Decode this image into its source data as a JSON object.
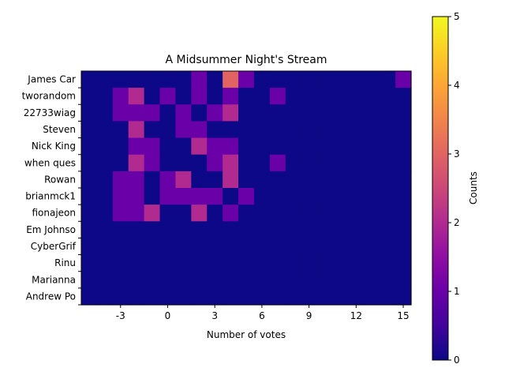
{
  "chart_data": {
    "type": "heatmap",
    "title": "A Midsummer Night's Stream",
    "xlabel": "Number of votes",
    "ylabel": "",
    "x_bin_start": -5.5,
    "x_bin_width": 1,
    "xlim": [
      -5.5,
      15.5
    ],
    "x_ticks": [
      -3,
      0,
      3,
      6,
      9,
      12,
      15
    ],
    "y_labels": [
      "James Car",
      "tworandom",
      "22733wiag",
      "Steven",
      "Nick King",
      "when ques",
      "Rowan",
      "brianmck1",
      "fionajeon",
      "Em Johnso",
      "CyberGrif",
      "Rinu",
      "Marianna ",
      "Andrew Po"
    ],
    "counts": [
      [
        0,
        0,
        0,
        0,
        0,
        0,
        0,
        1,
        0,
        3,
        1,
        0,
        0,
        0,
        0,
        0,
        0,
        0,
        0,
        0,
        1
      ],
      [
        0,
        0,
        1,
        2,
        0,
        1,
        0,
        1,
        0,
        1,
        0,
        0,
        1,
        0,
        0,
        0,
        0,
        0,
        0,
        0,
        0
      ],
      [
        0,
        0,
        1,
        1,
        1,
        0,
        1,
        0,
        1,
        2,
        0,
        0,
        0,
        0,
        0,
        0,
        0,
        0,
        0,
        0,
        0
      ],
      [
        0,
        0,
        0,
        2,
        0,
        0,
        1,
        1,
        0,
        0,
        0,
        0,
        0,
        0,
        0,
        0,
        0,
        0,
        0,
        0,
        0
      ],
      [
        0,
        0,
        0,
        1,
        1,
        0,
        0,
        2,
        1,
        1,
        0,
        0,
        0,
        0,
        0,
        0,
        0,
        0,
        0,
        0,
        0
      ],
      [
        0,
        0,
        0,
        2,
        1,
        0,
        0,
        0,
        1,
        2,
        0,
        0,
        1,
        0,
        0,
        0,
        0,
        0,
        0,
        0,
        0
      ],
      [
        0,
        0,
        1,
        1,
        0,
        1,
        2,
        0,
        0,
        2,
        0,
        0,
        0,
        0,
        0,
        0,
        0,
        0,
        0,
        0,
        0
      ],
      [
        0,
        0,
        1,
        1,
        0,
        1,
        1,
        1,
        1,
        0,
        1,
        0,
        0,
        0,
        0,
        0,
        0,
        0,
        0,
        0,
        0
      ],
      [
        0,
        0,
        1,
        1,
        2,
        0,
        0,
        2,
        0,
        1,
        0,
        0,
        0,
        0,
        0,
        0,
        0,
        0,
        0,
        0,
        0
      ],
      [
        0,
        0,
        0,
        0,
        0,
        0,
        0,
        0,
        0,
        0,
        0,
        0,
        0,
        0,
        0,
        0,
        0,
        0,
        0,
        0,
        0
      ],
      [
        0,
        0,
        0,
        0,
        0,
        0,
        0,
        0,
        0,
        0,
        0,
        0,
        0,
        0,
        0,
        0,
        0,
        0,
        0,
        0,
        0
      ],
      [
        0,
        0,
        0,
        0,
        0,
        0,
        0,
        0,
        0,
        0,
        0,
        0,
        0,
        0,
        0,
        0,
        0,
        0,
        0,
        0,
        0
      ],
      [
        0,
        0,
        0,
        0,
        0,
        0,
        0,
        0,
        0,
        0,
        0,
        0,
        0,
        0,
        0,
        0,
        0,
        0,
        0,
        0,
        0
      ],
      [
        0,
        0,
        0,
        0,
        0,
        0,
        0,
        0,
        0,
        0,
        0,
        0,
        0,
        0,
        0,
        0,
        0,
        0,
        0,
        0,
        0
      ]
    ],
    "colorbar": {
      "label": "Counts",
      "min": 0,
      "max": 5,
      "ticks": [
        0,
        1,
        2,
        3,
        4,
        5
      ],
      "colormap": "plasma"
    },
    "grid": false,
    "legend": "none"
  }
}
